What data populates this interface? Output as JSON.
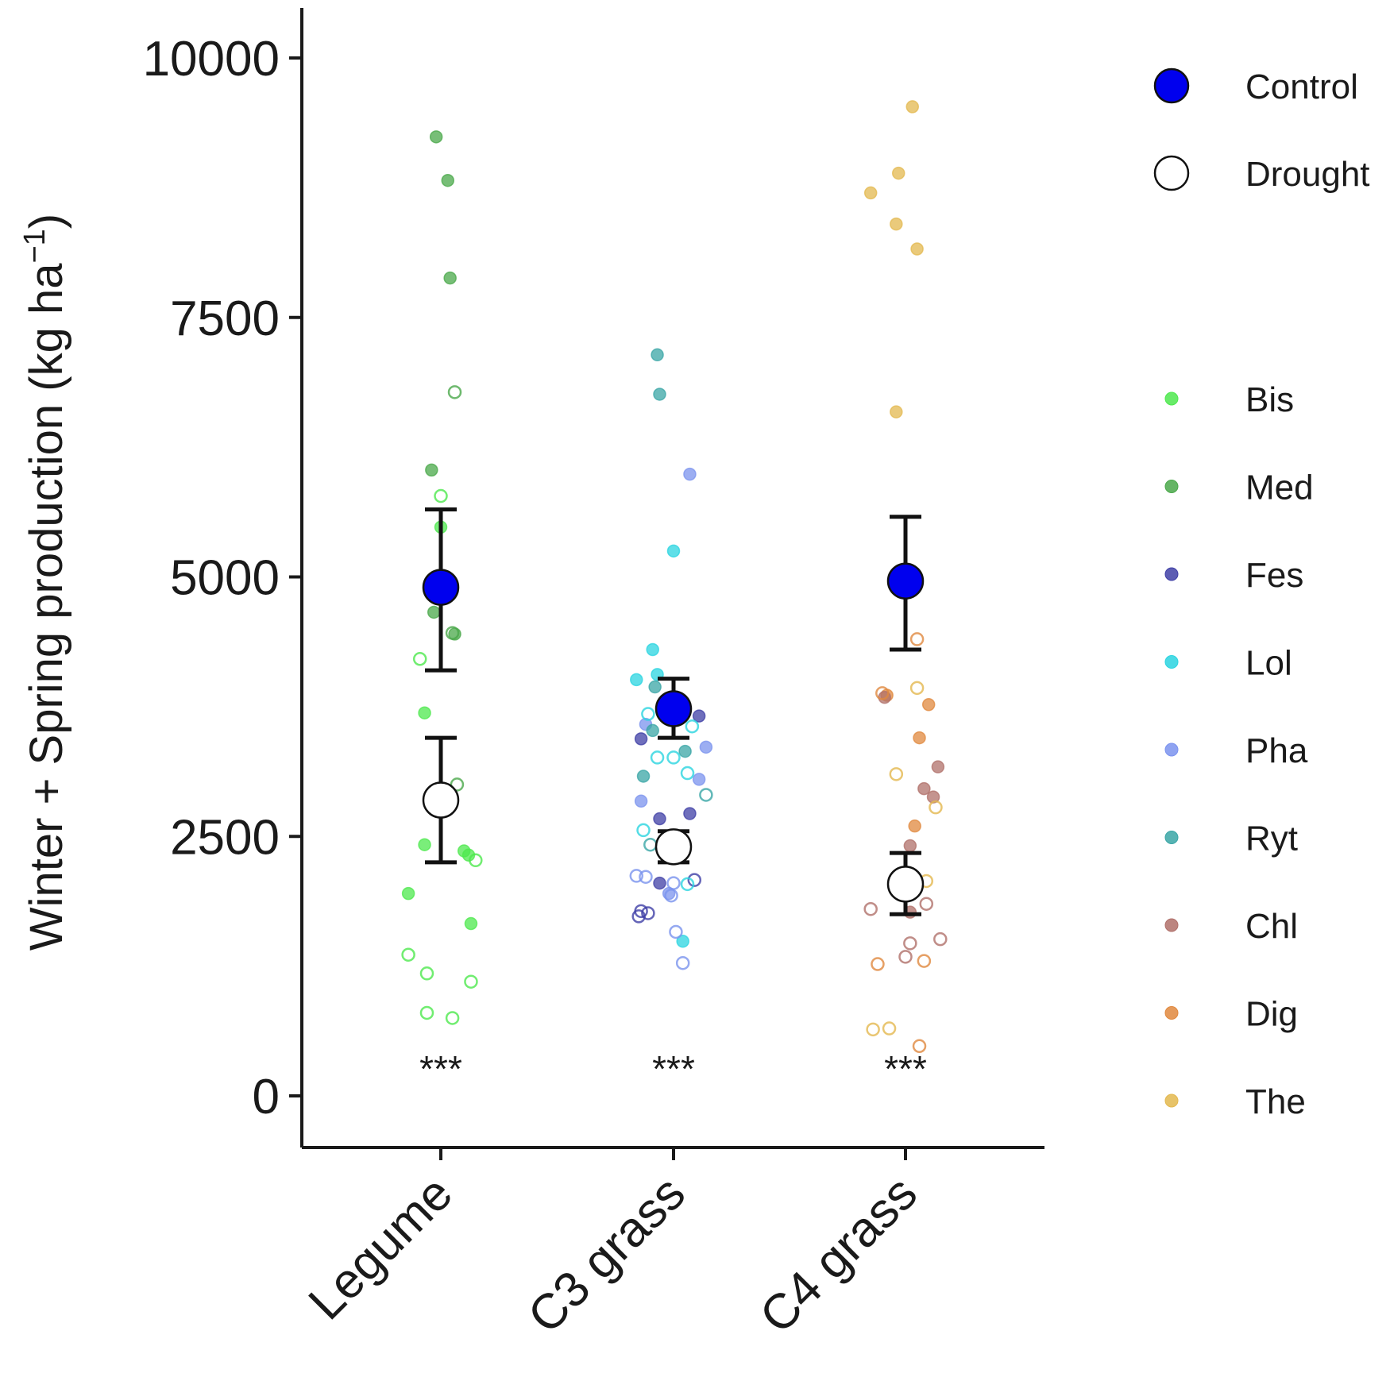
{
  "chart_data": {
    "type": "scatter",
    "title": "",
    "xlabel": "",
    "ylabel": "Winter + Spring production (kg ha",
    "ylabel_superscript": "−1",
    "ylabel_close": ")",
    "ylim": [
      -900,
      10500
    ],
    "yticks": [
      0,
      2500,
      5000,
      7500,
      10000
    ],
    "ytick_labels": [
      "0",
      "2500",
      "5000",
      "7500",
      "10000"
    ],
    "categories": [
      "Legume",
      "C3 grass",
      "C4 grass"
    ],
    "significance": [
      "***",
      "***",
      "***"
    ],
    "treatments": [
      {
        "name": "Control",
        "fill": "#0000ee"
      },
      {
        "name": "Drought",
        "fill": "#ffffff"
      }
    ],
    "species": [
      {
        "name": "Bis",
        "color": "#4ee84e"
      },
      {
        "name": "Med",
        "color": "#4aa84a"
      },
      {
        "name": "Fes",
        "color": "#3f3fa6"
      },
      {
        "name": "Lol",
        "color": "#2ad4e0"
      },
      {
        "name": "Pha",
        "color": "#7b93ee"
      },
      {
        "name": "Ryt",
        "color": "#3aa6a6"
      },
      {
        "name": "Chl",
        "color": "#b0706a"
      },
      {
        "name": "Dig",
        "color": "#e0883e"
      },
      {
        "name": "The",
        "color": "#e3b84f"
      }
    ],
    "means": [
      {
        "category": "Legume",
        "treatment": "Control",
        "mean": 4900,
        "lower": 4100,
        "upper": 5650
      },
      {
        "category": "Legume",
        "treatment": "Drought",
        "mean": 2850,
        "lower": 2250,
        "upper": 3450
      },
      {
        "category": "C3 grass",
        "treatment": "Control",
        "mean": 3730,
        "lower": 3450,
        "upper": 4020
      },
      {
        "category": "C3 grass",
        "treatment": "Drought",
        "mean": 2400,
        "lower": 2250,
        "upper": 2550
      },
      {
        "category": "C4 grass",
        "treatment": "Control",
        "mean": 4960,
        "lower": 4300,
        "upper": 5580
      },
      {
        "category": "C4 grass",
        "treatment": "Drought",
        "mean": 2040,
        "lower": 1750,
        "upper": 2340
      }
    ],
    "points": [
      {
        "category": "Legume",
        "species": "Med",
        "treatment": "Control",
        "y": 9240,
        "jitter": -0.02
      },
      {
        "category": "Legume",
        "species": "Med",
        "treatment": "Control",
        "y": 8820,
        "jitter": 0.03
      },
      {
        "category": "Legume",
        "species": "Med",
        "treatment": "Control",
        "y": 7880,
        "jitter": 0.04
      },
      {
        "category": "Legume",
        "species": "Med",
        "treatment": "Control",
        "y": 6030,
        "jitter": -0.04
      },
      {
        "category": "Legume",
        "species": "Bis",
        "treatment": "Control",
        "y": 5480,
        "jitter": 0.0
      },
      {
        "category": "Legume",
        "species": "Med",
        "treatment": "Control",
        "y": 4660,
        "jitter": -0.03
      },
      {
        "category": "Legume",
        "species": "Med",
        "treatment": "Control",
        "y": 4450,
        "jitter": 0.06
      },
      {
        "category": "Legume",
        "species": "Bis",
        "treatment": "Control",
        "y": 3690,
        "jitter": -0.07
      },
      {
        "category": "Legume",
        "species": "Bis",
        "treatment": "Control",
        "y": 2420,
        "jitter": -0.07
      },
      {
        "category": "Legume",
        "species": "Bis",
        "treatment": "Control",
        "y": 2360,
        "jitter": 0.1
      },
      {
        "category": "Legume",
        "species": "Bis",
        "treatment": "Control",
        "y": 2320,
        "jitter": 0.12
      },
      {
        "category": "Legume",
        "species": "Bis",
        "treatment": "Control",
        "y": 1950,
        "jitter": -0.14
      },
      {
        "category": "Legume",
        "species": "Bis",
        "treatment": "Control",
        "y": 1660,
        "jitter": 0.13
      },
      {
        "category": "Legume",
        "species": "Med",
        "treatment": "Drought",
        "y": 6780,
        "jitter": 0.06
      },
      {
        "category": "Legume",
        "species": "Bis",
        "treatment": "Drought",
        "y": 5780,
        "jitter": 0.0
      },
      {
        "category": "Legume",
        "species": "Med",
        "treatment": "Drought",
        "y": 4460,
        "jitter": 0.05
      },
      {
        "category": "Legume",
        "species": "Bis",
        "treatment": "Drought",
        "y": 4210,
        "jitter": -0.09
      },
      {
        "category": "Legume",
        "species": "Med",
        "treatment": "Drought",
        "y": 3000,
        "jitter": 0.07
      },
      {
        "category": "Legume",
        "species": "Bis",
        "treatment": "Drought",
        "y": 2270,
        "jitter": 0.15
      },
      {
        "category": "Legume",
        "species": "Bis",
        "treatment": "Drought",
        "y": 1360,
        "jitter": -0.14
      },
      {
        "category": "Legume",
        "species": "Bis",
        "treatment": "Drought",
        "y": 1180,
        "jitter": -0.06
      },
      {
        "category": "Legume",
        "species": "Bis",
        "treatment": "Drought",
        "y": 1100,
        "jitter": 0.13
      },
      {
        "category": "Legume",
        "species": "Bis",
        "treatment": "Drought",
        "y": 800,
        "jitter": -0.06
      },
      {
        "category": "Legume",
        "species": "Bis",
        "treatment": "Drought",
        "y": 750,
        "jitter": 0.05
      },
      {
        "category": "C3 grass",
        "species": "Ryt",
        "treatment": "Control",
        "y": 7140,
        "jitter": -0.07
      },
      {
        "category": "C3 grass",
        "species": "Ryt",
        "treatment": "Control",
        "y": 6760,
        "jitter": -0.06
      },
      {
        "category": "C3 grass",
        "species": "Pha",
        "treatment": "Control",
        "y": 5990,
        "jitter": 0.07
      },
      {
        "category": "C3 grass",
        "species": "Lol",
        "treatment": "Control",
        "y": 5250,
        "jitter": 0.0
      },
      {
        "category": "C3 grass",
        "species": "Lol",
        "treatment": "Control",
        "y": 4300,
        "jitter": -0.09
      },
      {
        "category": "C3 grass",
        "species": "Lol",
        "treatment": "Control",
        "y": 4060,
        "jitter": -0.07
      },
      {
        "category": "C3 grass",
        "species": "Lol",
        "treatment": "Control",
        "y": 4010,
        "jitter": -0.16
      },
      {
        "category": "C3 grass",
        "species": "Ryt",
        "treatment": "Control",
        "y": 3940,
        "jitter": -0.08
      },
      {
        "category": "C3 grass",
        "species": "Fes",
        "treatment": "Control",
        "y": 3660,
        "jitter": 0.11
      },
      {
        "category": "C3 grass",
        "species": "Pha",
        "treatment": "Control",
        "y": 3580,
        "jitter": -0.12
      },
      {
        "category": "C3 grass",
        "species": "Ryt",
        "treatment": "Control",
        "y": 3520,
        "jitter": -0.09
      },
      {
        "category": "C3 grass",
        "species": "Fes",
        "treatment": "Control",
        "y": 3440,
        "jitter": -0.14
      },
      {
        "category": "C3 grass",
        "species": "Pha",
        "treatment": "Control",
        "y": 3360,
        "jitter": 0.14
      },
      {
        "category": "C3 grass",
        "species": "Ryt",
        "treatment": "Control",
        "y": 3320,
        "jitter": 0.05
      },
      {
        "category": "C3 grass",
        "species": "Ryt",
        "treatment": "Control",
        "y": 3080,
        "jitter": -0.13
      },
      {
        "category": "C3 grass",
        "species": "Pha",
        "treatment": "Control",
        "y": 3050,
        "jitter": 0.11
      },
      {
        "category": "C3 grass",
        "species": "Pha",
        "treatment": "Control",
        "y": 2840,
        "jitter": -0.14
      },
      {
        "category": "C3 grass",
        "species": "Fes",
        "treatment": "Control",
        "y": 2720,
        "jitter": 0.07
      },
      {
        "category": "C3 grass",
        "species": "Fes",
        "treatment": "Control",
        "y": 2670,
        "jitter": -0.06
      },
      {
        "category": "C3 grass",
        "species": "Fes",
        "treatment": "Control",
        "y": 2050,
        "jitter": -0.06
      },
      {
        "category": "C3 grass",
        "species": "Pha",
        "treatment": "Control",
        "y": 1950,
        "jitter": -0.02
      },
      {
        "category": "C3 grass",
        "species": "Lol",
        "treatment": "Control",
        "y": 1490,
        "jitter": 0.04
      },
      {
        "category": "C3 grass",
        "species": "Lol",
        "treatment": "Drought",
        "y": 3680,
        "jitter": -0.11
      },
      {
        "category": "C3 grass",
        "species": "Lol",
        "treatment": "Drought",
        "y": 3560,
        "jitter": 0.08
      },
      {
        "category": "C3 grass",
        "species": "Lol",
        "treatment": "Drought",
        "y": 3260,
        "jitter": -0.07
      },
      {
        "category": "C3 grass",
        "species": "Lol",
        "treatment": "Drought",
        "y": 3260,
        "jitter": 0.0
      },
      {
        "category": "C3 grass",
        "species": "Lol",
        "treatment": "Drought",
        "y": 3110,
        "jitter": 0.06
      },
      {
        "category": "C3 grass",
        "species": "Ryt",
        "treatment": "Drought",
        "y": 2900,
        "jitter": 0.14
      },
      {
        "category": "C3 grass",
        "species": "Lol",
        "treatment": "Drought",
        "y": 2560,
        "jitter": -0.13
      },
      {
        "category": "C3 grass",
        "species": "Ryt",
        "treatment": "Drought",
        "y": 2420,
        "jitter": -0.1
      },
      {
        "category": "C3 grass",
        "species": "Pha",
        "treatment": "Drought",
        "y": 2120,
        "jitter": -0.16
      },
      {
        "category": "C3 grass",
        "species": "Pha",
        "treatment": "Drought",
        "y": 2110,
        "jitter": -0.12
      },
      {
        "category": "C3 grass",
        "species": "Fes",
        "treatment": "Drought",
        "y": 2080,
        "jitter": 0.09
      },
      {
        "category": "C3 grass",
        "species": "Pha",
        "treatment": "Drought",
        "y": 2050,
        "jitter": 0.0
      },
      {
        "category": "C3 grass",
        "species": "Lol",
        "treatment": "Drought",
        "y": 2040,
        "jitter": 0.06
      },
      {
        "category": "C3 grass",
        "species": "Pha",
        "treatment": "Drought",
        "y": 1930,
        "jitter": -0.01
      },
      {
        "category": "C3 grass",
        "species": "Fes",
        "treatment": "Drought",
        "y": 1780,
        "jitter": -0.14
      },
      {
        "category": "C3 grass",
        "species": "Fes",
        "treatment": "Drought",
        "y": 1760,
        "jitter": -0.11
      },
      {
        "category": "C3 grass",
        "species": "Fes",
        "treatment": "Drought",
        "y": 1730,
        "jitter": -0.15
      },
      {
        "category": "C3 grass",
        "species": "Pha",
        "treatment": "Drought",
        "y": 1580,
        "jitter": 0.01
      },
      {
        "category": "C3 grass",
        "species": "Pha",
        "treatment": "Drought",
        "y": 1280,
        "jitter": 0.04
      },
      {
        "category": "C4 grass",
        "species": "The",
        "treatment": "Control",
        "y": 9530,
        "jitter": 0.03
      },
      {
        "category": "C4 grass",
        "species": "The",
        "treatment": "Control",
        "y": 8890,
        "jitter": -0.03
      },
      {
        "category": "C4 grass",
        "species": "The",
        "treatment": "Control",
        "y": 8700,
        "jitter": -0.15
      },
      {
        "category": "C4 grass",
        "species": "The",
        "treatment": "Control",
        "y": 8400,
        "jitter": -0.04
      },
      {
        "category": "C4 grass",
        "species": "The",
        "treatment": "Control",
        "y": 8160,
        "jitter": 0.05
      },
      {
        "category": "C4 grass",
        "species": "The",
        "treatment": "Control",
        "y": 6590,
        "jitter": -0.04
      },
      {
        "category": "C4 grass",
        "species": "Dig",
        "treatment": "Control",
        "y": 3860,
        "jitter": -0.08
      },
      {
        "category": "C4 grass",
        "species": "Chl",
        "treatment": "Control",
        "y": 3840,
        "jitter": -0.09
      },
      {
        "category": "C4 grass",
        "species": "Dig",
        "treatment": "Control",
        "y": 3770,
        "jitter": 0.1
      },
      {
        "category": "C4 grass",
        "species": "Dig",
        "treatment": "Control",
        "y": 3450,
        "jitter": 0.06
      },
      {
        "category": "C4 grass",
        "species": "Chl",
        "treatment": "Control",
        "y": 3170,
        "jitter": 0.14
      },
      {
        "category": "C4 grass",
        "species": "Chl",
        "treatment": "Control",
        "y": 2960,
        "jitter": 0.08
      },
      {
        "category": "C4 grass",
        "species": "Chl",
        "treatment": "Control",
        "y": 2880,
        "jitter": 0.12
      },
      {
        "category": "C4 grass",
        "species": "Dig",
        "treatment": "Control",
        "y": 2600,
        "jitter": 0.04
      },
      {
        "category": "C4 grass",
        "species": "Chl",
        "treatment": "Control",
        "y": 2410,
        "jitter": 0.02
      },
      {
        "category": "C4 grass",
        "species": "Chl",
        "treatment": "Control",
        "y": 1770,
        "jitter": 0.02
      },
      {
        "category": "C4 grass",
        "species": "Dig",
        "treatment": "Drought",
        "y": 4400,
        "jitter": 0.05
      },
      {
        "category": "C4 grass",
        "species": "The",
        "treatment": "Drought",
        "y": 3930,
        "jitter": 0.05
      },
      {
        "category": "C4 grass",
        "species": "Dig",
        "treatment": "Drought",
        "y": 3880,
        "jitter": -0.1
      },
      {
        "category": "C4 grass",
        "species": "The",
        "treatment": "Drought",
        "y": 3100,
        "jitter": -0.04
      },
      {
        "category": "C4 grass",
        "species": "The",
        "treatment": "Drought",
        "y": 2780,
        "jitter": 0.13
      },
      {
        "category": "C4 grass",
        "species": "The",
        "treatment": "Drought",
        "y": 2070,
        "jitter": 0.09
      },
      {
        "category": "C4 grass",
        "species": "Chl",
        "treatment": "Drought",
        "y": 1850,
        "jitter": 0.09
      },
      {
        "category": "C4 grass",
        "species": "Chl",
        "treatment": "Drought",
        "y": 1800,
        "jitter": -0.15
      },
      {
        "category": "C4 grass",
        "species": "Chl",
        "treatment": "Drought",
        "y": 1510,
        "jitter": 0.15
      },
      {
        "category": "C4 grass",
        "species": "Chl",
        "treatment": "Drought",
        "y": 1470,
        "jitter": 0.02
      },
      {
        "category": "C4 grass",
        "species": "Chl",
        "treatment": "Drought",
        "y": 1340,
        "jitter": 0.0
      },
      {
        "category": "C4 grass",
        "species": "Dig",
        "treatment": "Drought",
        "y": 1300,
        "jitter": 0.08
      },
      {
        "category": "C4 grass",
        "species": "Dig",
        "treatment": "Drought",
        "y": 1270,
        "jitter": -0.12
      },
      {
        "category": "C4 grass",
        "species": "The",
        "treatment": "Drought",
        "y": 640,
        "jitter": -0.14
      },
      {
        "category": "C4 grass",
        "species": "The",
        "treatment": "Drought",
        "y": 650,
        "jitter": -0.07
      },
      {
        "category": "C4 grass",
        "species": "Dig",
        "treatment": "Drought",
        "y": 480,
        "jitter": 0.06
      }
    ]
  }
}
